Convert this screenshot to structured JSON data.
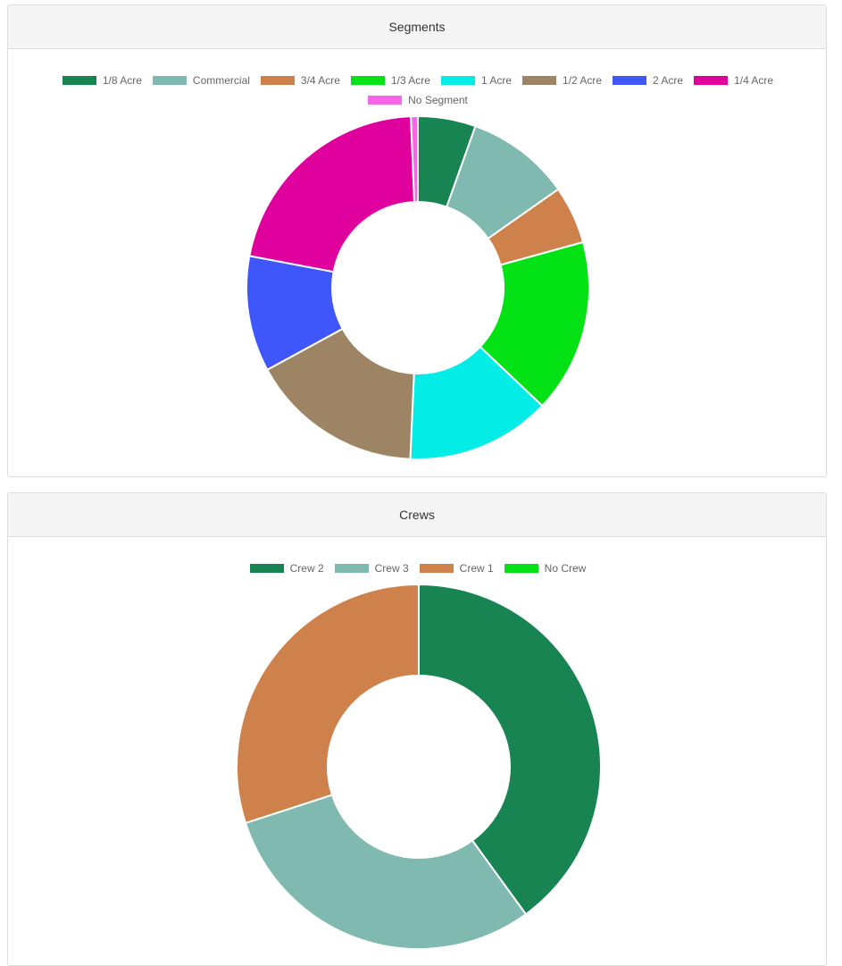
{
  "chart_data": [
    {
      "type": "pie",
      "variant": "doughnut",
      "title": "Segments",
      "legend_position": "top",
      "categories": [
        "1/8 Acre",
        "Commercial",
        "3/4 Acre",
        "1/3 Acre",
        "1 Acre",
        "1/2 Acre",
        "2 Acre",
        "1/4 Acre",
        "No Segment"
      ],
      "values": [
        5,
        9,
        5,
        15,
        12.5,
        15,
        10,
        19.6,
        0.6
      ],
      "colors": [
        "#178452",
        "#7fb9b0",
        "#ce814a",
        "#03e214",
        "#03ece6",
        "#9c8464",
        "#3f56fa",
        "#e0009e",
        "#f766e6"
      ]
    },
    {
      "type": "pie",
      "variant": "doughnut",
      "title": "Crews",
      "legend_position": "top",
      "categories": [
        "Crew 2",
        "Crew 3",
        "Crew 1",
        "No Crew"
      ],
      "values": [
        40,
        30,
        30,
        0
      ],
      "colors": [
        "#178452",
        "#7fb9b0",
        "#ce814a",
        "#03e214"
      ]
    }
  ]
}
